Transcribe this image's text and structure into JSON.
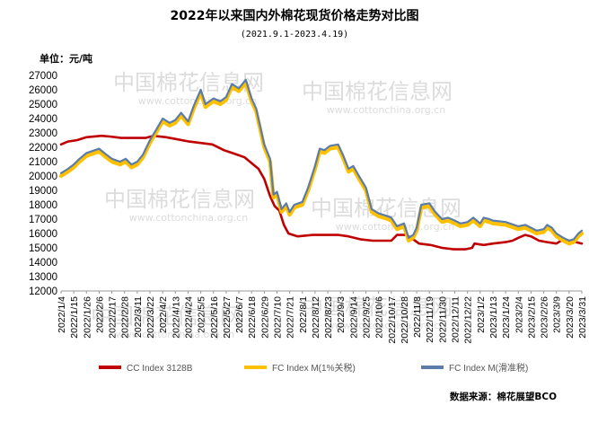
{
  "chart_data": {
    "type": "line",
    "title": "2022年以来国内外棉花现货价格走势对比图",
    "subtitle": "(2021.9.1-2023.4.19)",
    "ylabel": "单位：元/吨",
    "ylim": [
      12000,
      27000
    ],
    "yticks": [
      12000,
      13000,
      14000,
      15000,
      16000,
      17000,
      18000,
      19000,
      20000,
      21000,
      22000,
      23000,
      24000,
      25000,
      26000,
      27000
    ],
    "xlim": [
      "2022-01-04",
      "2023-03-31"
    ],
    "x_tick_labels": [
      "2022/1/4",
      "2022/1/15",
      "2022/1/26",
      "2022/2/6",
      "2022/2/17",
      "2022/2/28",
      "2022/3/11",
      "2022/3/22",
      "2022/4/2",
      "2022/4/13",
      "2022/4/24",
      "2022/5/5",
      "2022/5/16",
      "2022/5/27",
      "2022/6/7",
      "2022/6/18",
      "2022/6/29",
      "2022/7/10",
      "2022/7/21",
      "2022/8/1",
      "2022/8/12",
      "2022/8/23",
      "2022/9/3",
      "2022/9/14",
      "2022/9/25",
      "2022/10/6",
      "2022/10/17",
      "2022/10/28",
      "2022/11/8",
      "2022/11/19",
      "2022/11/30",
      "2022/12/11",
      "2022/12/22",
      "2023/1/2",
      "2023/1/13",
      "2023/1/24",
      "2023/2/4",
      "2023/2/15",
      "2023/2/26",
      "2023/3/9",
      "2023/3/20",
      "2023/3/31"
    ],
    "grid": false,
    "legend_position": "bottom",
    "source_text": "数据来源：棉花展望BCO",
    "watermark_cn": "中国棉花信息网",
    "watermark_en": "www.cottonchina.org.cn",
    "series": [
      {
        "name": "CC Index 3128B",
        "color": "#c00000",
        "points": [
          [
            "2022-01-04",
            22200
          ],
          [
            "2022-01-10",
            22400
          ],
          [
            "2022-01-18",
            22500
          ],
          [
            "2022-01-26",
            22700
          ],
          [
            "2022-02-08",
            22800
          ],
          [
            "2022-02-15",
            22750
          ],
          [
            "2022-02-25",
            22650
          ],
          [
            "2022-03-08",
            22650
          ],
          [
            "2022-03-18",
            22650
          ],
          [
            "2022-03-25",
            22800
          ],
          [
            "2022-04-05",
            22700
          ],
          [
            "2022-04-15",
            22550
          ],
          [
            "2022-04-25",
            22400
          ],
          [
            "2022-05-05",
            22300
          ],
          [
            "2022-05-15",
            22200
          ],
          [
            "2022-05-25",
            21800
          ],
          [
            "2022-06-05",
            21500
          ],
          [
            "2022-06-12",
            21300
          ],
          [
            "2022-06-18",
            20900
          ],
          [
            "2022-06-24",
            20500
          ],
          [
            "2022-06-29",
            19800
          ],
          [
            "2022-07-04",
            18600
          ],
          [
            "2022-07-08",
            17900
          ],
          [
            "2022-07-12",
            17600
          ],
          [
            "2022-07-16",
            16600
          ],
          [
            "2022-07-20",
            16000
          ],
          [
            "2022-07-28",
            15800
          ],
          [
            "2022-08-10",
            15900
          ],
          [
            "2022-08-20",
            15900
          ],
          [
            "2022-09-01",
            15900
          ],
          [
            "2022-09-10",
            15800
          ],
          [
            "2022-09-20",
            15600
          ],
          [
            "2022-10-01",
            15500
          ],
          [
            "2022-10-17",
            15500
          ],
          [
            "2022-10-22",
            15900
          ],
          [
            "2022-10-30",
            15900
          ],
          [
            "2022-11-05",
            15600
          ],
          [
            "2022-11-10",
            15300
          ],
          [
            "2022-11-20",
            15200
          ],
          [
            "2022-11-30",
            15000
          ],
          [
            "2022-12-10",
            14900
          ],
          [
            "2022-12-20",
            14900
          ],
          [
            "2022-12-26",
            15000
          ],
          [
            "2022-12-28",
            15300
          ],
          [
            "2023-01-05",
            15200
          ],
          [
            "2023-01-13",
            15300
          ],
          [
            "2023-01-24",
            15400
          ],
          [
            "2023-01-30",
            15500
          ],
          [
            "2023-02-04",
            15700
          ],
          [
            "2023-02-10",
            15900
          ],
          [
            "2023-02-15",
            15800
          ],
          [
            "2023-02-22",
            15500
          ],
          [
            "2023-03-01",
            15400
          ],
          [
            "2023-03-09",
            15300
          ],
          [
            "2023-03-15",
            15600
          ],
          [
            "2023-03-20",
            15500
          ],
          [
            "2023-03-26",
            15400
          ],
          [
            "2023-03-31",
            15300
          ]
        ]
      },
      {
        "name": "FC Index M(1%关税)",
        "color": "#ffc000",
        "points": [
          [
            "2022-01-04",
            20000
          ],
          [
            "2022-01-10",
            20300
          ],
          [
            "2022-01-15",
            20600
          ],
          [
            "2022-01-20",
            21000
          ],
          [
            "2022-01-26",
            21400
          ],
          [
            "2022-02-06",
            21700
          ],
          [
            "2022-02-12",
            21300
          ],
          [
            "2022-02-17",
            21000
          ],
          [
            "2022-02-24",
            20800
          ],
          [
            "2022-03-01",
            21000
          ],
          [
            "2022-03-06",
            20600
          ],
          [
            "2022-03-11",
            20800
          ],
          [
            "2022-03-16",
            21300
          ],
          [
            "2022-03-22",
            22300
          ],
          [
            "2022-03-28",
            23100
          ],
          [
            "2022-04-02",
            23800
          ],
          [
            "2022-04-08",
            23500
          ],
          [
            "2022-04-13",
            23700
          ],
          [
            "2022-04-18",
            24200
          ],
          [
            "2022-04-24",
            23600
          ],
          [
            "2022-04-29",
            24700
          ],
          [
            "2022-05-05",
            25800
          ],
          [
            "2022-05-09",
            24800
          ],
          [
            "2022-05-16",
            25200
          ],
          [
            "2022-05-22",
            25000
          ],
          [
            "2022-05-27",
            25300
          ],
          [
            "2022-06-01",
            26200
          ],
          [
            "2022-06-07",
            25900
          ],
          [
            "2022-06-13",
            26500
          ],
          [
            "2022-06-18",
            25200
          ],
          [
            "2022-06-22",
            24500
          ],
          [
            "2022-06-29",
            22000
          ],
          [
            "2022-07-04",
            21000
          ],
          [
            "2022-07-07",
            18500
          ],
          [
            "2022-07-10",
            18700
          ],
          [
            "2022-07-14",
            17500
          ],
          [
            "2022-07-18",
            17900
          ],
          [
            "2022-07-21",
            17300
          ],
          [
            "2022-07-25",
            17800
          ],
          [
            "2022-08-01",
            18000
          ],
          [
            "2022-08-06",
            19000
          ],
          [
            "2022-08-12",
            20500
          ],
          [
            "2022-08-16",
            21700
          ],
          [
            "2022-08-20",
            21600
          ],
          [
            "2022-08-25",
            21900
          ],
          [
            "2022-09-01",
            22000
          ],
          [
            "2022-09-05",
            21300
          ],
          [
            "2022-09-10",
            20300
          ],
          [
            "2022-09-14",
            20500
          ],
          [
            "2022-09-19",
            19800
          ],
          [
            "2022-09-25",
            19000
          ],
          [
            "2022-09-30",
            17500
          ],
          [
            "2022-10-06",
            17200
          ],
          [
            "2022-10-14",
            17000
          ],
          [
            "2022-10-17",
            16900
          ],
          [
            "2022-10-22",
            16300
          ],
          [
            "2022-10-28",
            16500
          ],
          [
            "2022-11-01",
            15500
          ],
          [
            "2022-11-05",
            15700
          ],
          [
            "2022-11-08",
            16200
          ],
          [
            "2022-11-12",
            17800
          ],
          [
            "2022-11-19",
            17900
          ],
          [
            "2022-11-24",
            17300
          ],
          [
            "2022-11-30",
            16800
          ],
          [
            "2022-12-05",
            16900
          ],
          [
            "2022-12-11",
            16700
          ],
          [
            "2022-12-16",
            16500
          ],
          [
            "2022-12-22",
            16600
          ],
          [
            "2022-12-27",
            16900
          ],
          [
            "2023-01-02",
            16500
          ],
          [
            "2023-01-05",
            16900
          ],
          [
            "2023-01-10",
            16800
          ],
          [
            "2023-01-13",
            16700
          ],
          [
            "2023-01-24",
            16600
          ],
          [
            "2023-02-04",
            16300
          ],
          [
            "2023-02-10",
            16400
          ],
          [
            "2023-02-15",
            16200
          ],
          [
            "2023-02-20",
            16000
          ],
          [
            "2023-02-26",
            16100
          ],
          [
            "2023-03-01",
            16400
          ],
          [
            "2023-03-05",
            16200
          ],
          [
            "2023-03-09",
            15800
          ],
          [
            "2023-03-15",
            15500
          ],
          [
            "2023-03-20",
            15300
          ],
          [
            "2023-03-24",
            15400
          ],
          [
            "2023-03-28",
            15800
          ],
          [
            "2023-03-31",
            16000
          ]
        ]
      },
      {
        "name": "FC Index M(滑准税)",
        "color": "#5b7ca8",
        "points": [
          [
            "2022-01-04",
            20200
          ],
          [
            "2022-01-10",
            20500
          ],
          [
            "2022-01-15",
            20800
          ],
          [
            "2022-01-20",
            21200
          ],
          [
            "2022-01-26",
            21600
          ],
          [
            "2022-02-06",
            21900
          ],
          [
            "2022-02-12",
            21500
          ],
          [
            "2022-02-17",
            21200
          ],
          [
            "2022-02-24",
            21000
          ],
          [
            "2022-03-01",
            21200
          ],
          [
            "2022-03-06",
            20800
          ],
          [
            "2022-03-11",
            21000
          ],
          [
            "2022-03-16",
            21500
          ],
          [
            "2022-03-22",
            22500
          ],
          [
            "2022-03-28",
            23300
          ],
          [
            "2022-04-02",
            24000
          ],
          [
            "2022-04-08",
            23700
          ],
          [
            "2022-04-13",
            23900
          ],
          [
            "2022-04-18",
            24400
          ],
          [
            "2022-04-24",
            23800
          ],
          [
            "2022-04-29",
            24900
          ],
          [
            "2022-05-05",
            26000
          ],
          [
            "2022-05-09",
            25000
          ],
          [
            "2022-05-16",
            25400
          ],
          [
            "2022-05-22",
            25200
          ],
          [
            "2022-05-27",
            25500
          ],
          [
            "2022-06-01",
            26400
          ],
          [
            "2022-06-07",
            26100
          ],
          [
            "2022-06-13",
            26700
          ],
          [
            "2022-06-18",
            25400
          ],
          [
            "2022-06-22",
            24700
          ],
          [
            "2022-06-29",
            22200
          ],
          [
            "2022-07-04",
            21200
          ],
          [
            "2022-07-07",
            18700
          ],
          [
            "2022-07-10",
            18900
          ],
          [
            "2022-07-14",
            17700
          ],
          [
            "2022-07-18",
            18100
          ],
          [
            "2022-07-21",
            17500
          ],
          [
            "2022-07-25",
            18000
          ],
          [
            "2022-08-01",
            18200
          ],
          [
            "2022-08-06",
            19200
          ],
          [
            "2022-08-12",
            20700
          ],
          [
            "2022-08-16",
            21900
          ],
          [
            "2022-08-20",
            21800
          ],
          [
            "2022-08-25",
            22100
          ],
          [
            "2022-09-01",
            22200
          ],
          [
            "2022-09-05",
            21500
          ],
          [
            "2022-09-10",
            20500
          ],
          [
            "2022-09-14",
            20700
          ],
          [
            "2022-09-19",
            20000
          ],
          [
            "2022-09-25",
            19200
          ],
          [
            "2022-09-30",
            17700
          ],
          [
            "2022-10-06",
            17400
          ],
          [
            "2022-10-14",
            17200
          ],
          [
            "2022-10-17",
            17100
          ],
          [
            "2022-10-22",
            16500
          ],
          [
            "2022-10-28",
            16700
          ],
          [
            "2022-11-01",
            15700
          ],
          [
            "2022-11-05",
            15900
          ],
          [
            "2022-11-08",
            16400
          ],
          [
            "2022-11-12",
            18000
          ],
          [
            "2022-11-19",
            18100
          ],
          [
            "2022-11-24",
            17500
          ],
          [
            "2022-11-30",
            17000
          ],
          [
            "2022-12-05",
            17100
          ],
          [
            "2022-12-11",
            16900
          ],
          [
            "2022-12-16",
            16700
          ],
          [
            "2022-12-22",
            16800
          ],
          [
            "2022-12-27",
            17100
          ],
          [
            "2023-01-02",
            16700
          ],
          [
            "2023-01-05",
            17100
          ],
          [
            "2023-01-10",
            17000
          ],
          [
            "2023-01-13",
            16900
          ],
          [
            "2023-01-24",
            16800
          ],
          [
            "2023-02-04",
            16500
          ],
          [
            "2023-02-10",
            16600
          ],
          [
            "2023-02-15",
            16400
          ],
          [
            "2023-02-20",
            16200
          ],
          [
            "2023-02-26",
            16300
          ],
          [
            "2023-03-01",
            16600
          ],
          [
            "2023-03-05",
            16400
          ],
          [
            "2023-03-09",
            16000
          ],
          [
            "2023-03-15",
            15700
          ],
          [
            "2023-03-20",
            15500
          ],
          [
            "2023-03-24",
            15600
          ],
          [
            "2023-03-28",
            16000
          ],
          [
            "2023-03-31",
            16200
          ]
        ]
      }
    ]
  }
}
